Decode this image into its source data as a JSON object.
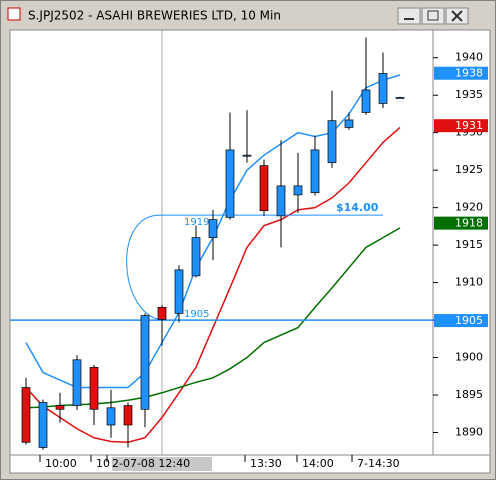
{
  "chart_data": {
    "type": "candlestick",
    "title": "S.JPJ2502 - ASAHI BREWERIES LTD, 10 Min",
    "open": [
      1896,
      1888,
      1893.6,
      1893.6,
      1898.7,
      1891,
      1893.6,
      1893.1,
      1906.7,
      1905.9,
      1910.9,
      1916,
      1918.7,
      1927,
      1925.6,
      1918.9,
      1921.7,
      1922,
      1926,
      1930.7,
      1932.7,
      1933.9,
      1934.7
    ],
    "high": [
      1897.3,
      1894.4,
      1895.3,
      1900.3,
      1899,
      1895.7,
      1894,
      1905.9,
      1907,
      1912.3,
      1917.6,
      1919.7,
      1932.7,
      1933,
      1926.4,
      1929,
      1927.3,
      1929.6,
      1935.6,
      1932.7,
      1942.7,
      1940.7,
      1934.8
    ],
    "low": [
      1888.4,
      1887.7,
      1891.3,
      1893,
      1891,
      1889.3,
      1888,
      1890.7,
      1901.6,
      1904.7,
      1910.7,
      1913,
      1918.4,
      1926,
      1918.9,
      1914.7,
      1919.3,
      1921.6,
      1925.3,
      1930.4,
      1932.4,
      1933.3,
      1934.6
    ],
    "close": [
      1888.7,
      1894,
      1893.1,
      1899.7,
      1893.1,
      1893.3,
      1891,
      1905.6,
      1905.1,
      1911.7,
      1916,
      1918.4,
      1927.7,
      1927,
      1919.6,
      1922.9,
      1922.9,
      1927.7,
      1931.6,
      1931.7,
      1935.7,
      1937.9,
      1934.7
    ],
    "up_color": "#1e90ff",
    "down_color": "#e01010",
    "lines": [
      {
        "color": "#1e90ff",
        "values": [
          1902,
          1898,
          1897,
          1896,
          1896,
          1896,
          1896,
          1898,
          1902,
          1906,
          1912,
          1916,
          1921,
          1925,
          1927,
          1928.5,
          1930,
          1929.5,
          1930,
          1932.5,
          1936,
          1937,
          1937.7
        ]
      },
      {
        "color": "#e01010",
        "values": [
          1896,
          1893.5,
          1892,
          1890.5,
          1889.3,
          1888.8,
          1888.7,
          1889.3,
          1892,
          1895.3,
          1898.7,
          1904,
          1909.3,
          1914.7,
          1917.6,
          1918.4,
          1919.7,
          1920,
          1921.3,
          1923.3,
          1926,
          1928.7,
          1930.7
        ]
      },
      {
        "color": "#007000",
        "values": [
          1893.3,
          1893.4,
          1893.6,
          1893.7,
          1893.8,
          1894,
          1894.3,
          1894.7,
          1895.3,
          1896,
          1896.7,
          1897.3,
          1898.5,
          1900,
          1902,
          1903,
          1904,
          1906.7,
          1909.3,
          1912,
          1914.7,
          1916,
          1917.3
        ]
      }
    ],
    "ylim": [
      1887,
      1943.7
    ],
    "yticks": [
      1890,
      1895,
      1900,
      1905,
      1910,
      1915,
      1920,
      1925,
      1930,
      1935,
      1940
    ],
    "price_labels": [
      {
        "value": 1938,
        "color": "#1e90ff"
      },
      {
        "value": 1931,
        "color": "#e01010"
      },
      {
        "value": 1918,
        "color": "#007000"
      },
      {
        "value": 1905,
        "color": "#1e90ff"
      }
    ],
    "levels": [
      {
        "value": 1919,
        "note": "$14.00"
      },
      {
        "value": 1905
      }
    ],
    "xlabels": [
      "10:00",
      "10",
      "2-07-08  12:40",
      "13:30",
      "14:00",
      "7-14:30"
    ]
  }
}
